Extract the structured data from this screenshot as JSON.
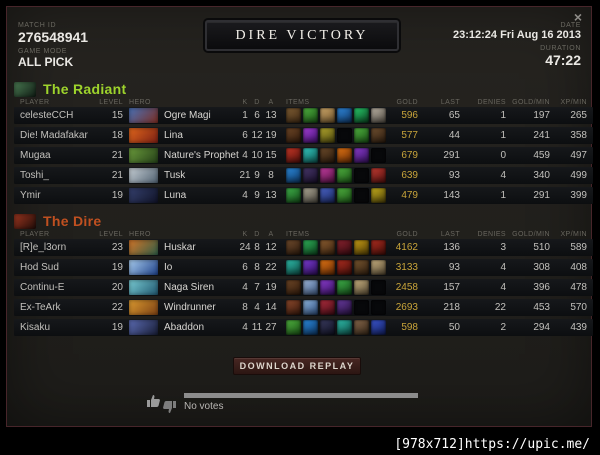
{
  "window": {
    "close_glyph": "×",
    "match_id_label": "MATCH ID",
    "match_id": "276548941",
    "game_mode_label": "GAME MODE",
    "game_mode": "ALL PICK",
    "victory_banner": "DIRE VICTORY",
    "date_label": "DATE",
    "date": "23:12:24 Fri Aug 16 2013",
    "duration_label": "DURATION",
    "duration": "47:22"
  },
  "columns": {
    "player": "PLAYER",
    "level": "LEVEL",
    "hero": "HERO",
    "k": "K",
    "d": "D",
    "a": "A",
    "items": "ITEMS",
    "gold": "GOLD",
    "last_hits": "LAST HITS",
    "denies": "DENIES",
    "gold_min": "GOLD/MIN",
    "xp_min": "XP/MIN"
  },
  "colors": {
    "radiant": "#9ed42c",
    "dire": "#c05020",
    "gold_text": "#c8a43a"
  },
  "teams": [
    {
      "name": "The Radiant",
      "color": "#9ed42c",
      "icon_colors": [
        "#4a7a52",
        "#101c14"
      ],
      "players": [
        {
          "player": "celesteCCH",
          "level": 15,
          "hero": "Ogre Magi",
          "k": 1,
          "d": 6,
          "a": 13,
          "gold": 596,
          "last_hits": 65,
          "denies": 1,
          "gold_min": 197,
          "xp_min": 265,
          "portrait": [
            "#4a72b8",
            "#7a2c20"
          ],
          "items": [
            "#7a5a32|#4a3118",
            "#4fae3f|#1d5c18",
            "#c9a468|#7a5c30",
            "#2e86d9|#123c6e",
            "#28c96a|#0c4a24",
            "#b8b0a2|#5c564c"
          ]
        },
        {
          "player": "Die! Madafakar",
          "level": 18,
          "hero": "Lina",
          "k": 6,
          "d": 12,
          "a": 19,
          "gold": 577,
          "last_hits": 44,
          "denies": 1,
          "gold_min": 241,
          "xp_min": 358,
          "portrait": [
            "#e0661c",
            "#7a1f14"
          ],
          "items": [
            "#6b4526|#381f0e",
            "#a43fd4|#46127a",
            "#b0a42e|#565010",
            null,
            "#4fae3f|#1d5c18",
            "#6e4f30|#332112"
          ]
        },
        {
          "player": "Mugaa",
          "level": 21,
          "hero": "Nature's Prophet",
          "k": 4,
          "d": 10,
          "a": 15,
          "gold": 679,
          "last_hits": 291,
          "denies": 0,
          "gold_min": 459,
          "xp_min": 497,
          "portrait": [
            "#6b9c3c",
            "#243f18"
          ],
          "items": [
            "#c43727|#5c120c",
            "#35c9c0|#0e5c58",
            "#6b4a2a|#2e1d0e",
            "#e07414|#702f06",
            "#8a3ccc|#3a1266",
            null
          ]
        },
        {
          "player": "Toshi_",
          "level": 21,
          "hero": "Tusk",
          "k": 21,
          "d": 9,
          "a": 8,
          "gold": 639,
          "last_hits": 93,
          "denies": 4,
          "gold_min": 340,
          "xp_min": 499,
          "portrait": [
            "#c6ced4",
            "#4f6070"
          ],
          "items": [
            "#2b88d9|#0f3c6e",
            "#463668|#1c1230",
            "#c23da0|#5a1246",
            "#4fae3f|#1d5c18",
            null,
            "#bf3b32|#5a1210"
          ]
        },
        {
          "player": "Ymir",
          "level": 19,
          "hero": "Luna",
          "k": 4,
          "d": 9,
          "a": 13,
          "gold": 479,
          "last_hits": 143,
          "denies": 1,
          "gold_min": 291,
          "xp_min": 399,
          "portrait": [
            "#35406e",
            "#101327"
          ],
          "items": [
            "#3fae49|#15521a",
            "#aaa492|#565248",
            "#4a63c4|#1b2a66",
            "#4fae3f|#1d5c18",
            null,
            "#c4ad1d|#57490a"
          ]
        }
      ]
    },
    {
      "name": "The Dire",
      "color": "#c05020",
      "icon_colors": [
        "#9c3620",
        "#200c08"
      ],
      "players": [
        {
          "player": "[R]e_l3orn",
          "level": 23,
          "hero": "Huskar",
          "k": 24,
          "d": 8,
          "a": 12,
          "gold": 4162,
          "last_hits": 136,
          "denies": 3,
          "gold_min": 510,
          "xp_min": 589,
          "portrait": [
            "#d4772a",
            "#2e5c46"
          ],
          "items": [
            "#6e4a2c|#321e0f",
            "#2fae58|#0e4e22",
            "#8a5c30|#402712",
            "#87222e|#3c0c12",
            "#c49a16|#5c4606",
            "#ab2c20|#4c100a"
          ]
        },
        {
          "player": "Hod Sud",
          "level": 19,
          "hero": "Io",
          "k": 6,
          "d": 8,
          "a": 22,
          "gold": 3133,
          "last_hits": 93,
          "denies": 4,
          "gold_min": 308,
          "xp_min": 408,
          "portrait": [
            "#a8cdf0",
            "#1d3f86"
          ],
          "items": [
            "#2fbcaa|#0e524a",
            "#7a3cd0|#330f66",
            "#e07414|#702f06",
            "#ab2c20|#4c100a",
            "#76552f|#362312",
            "#c4ad7e|#60523a"
          ]
        },
        {
          "player": "Continu-E",
          "level": 20,
          "hero": "Naga Siren",
          "k": 4,
          "d": 7,
          "a": 19,
          "gold": 2458,
          "last_hits": 157,
          "denies": 4,
          "gold_min": 396,
          "xp_min": 478,
          "portrait": [
            "#79ccd4",
            "#20566e"
          ],
          "items": [
            "#6b4526|#381f0e",
            "#9cb4d6|#44608c",
            "#8a3ccc|#3a1266",
            "#3fae49|#15521a",
            "#c4ad7e|#60523a",
            null
          ]
        },
        {
          "player": "Ex-TeArk",
          "level": 22,
          "hero": "Windrunner",
          "k": 8,
          "d": 4,
          "a": 14,
          "gold": 2693,
          "last_hits": 218,
          "denies": 22,
          "gold_min": 453,
          "xp_min": 570,
          "portrait": [
            "#dc9a30",
            "#7a4014"
          ],
          "items": [
            "#8a482c|#3e1c0e",
            "#8cb2d9|#33568a",
            "#ab2c3c|#4c0e18",
            "#663a9c|#2a1244",
            null,
            null
          ]
        },
        {
          "player": "Kisaku",
          "level": 19,
          "hero": "Abaddon",
          "k": 4,
          "d": 11,
          "a": 27,
          "gold": 598,
          "last_hits": 50,
          "denies": 2,
          "gold_min": 294,
          "xp_min": 439,
          "portrait": [
            "#5c6cb4",
            "#171c33"
          ],
          "items": [
            "#4fae3f|#1d5c18",
            "#2b88d9|#0f3c6e",
            "#38395c|#121326",
            "#2fbcaa|#0e524a",
            "#83654a|#3e2d1c",
            "#3b55cc|#142266"
          ]
        }
      ]
    }
  ],
  "footer": {
    "download_replay": "DOWNLOAD REPLAY",
    "votes_text": "No votes"
  },
  "watermark": "[978x712]https://upic.me/"
}
